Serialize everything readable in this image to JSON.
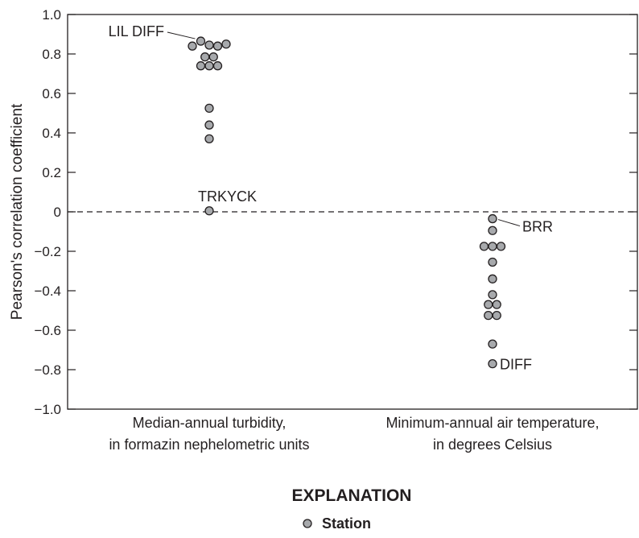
{
  "chart_data": {
    "type": "scatter",
    "ylabel": "Pearson's correlation coefficient",
    "ylim": [
      -1.0,
      1.0
    ],
    "yticks": [
      1.0,
      0.8,
      0.6,
      0.4,
      0.2,
      0,
      -0.2,
      -0.4,
      -0.6,
      -0.8,
      -1.0
    ],
    "ytick_labels": [
      "1.0",
      "0.8",
      "0.6",
      "0.4",
      "0.2",
      "0",
      "−0.2",
      "−0.4",
      "−0.6",
      "−0.8",
      "−1.0"
    ],
    "reference_line": 0,
    "categories": [
      {
        "line1": "Median-annual turbidity,",
        "line2": "in formazin nephelometric units"
      },
      {
        "line1": "Minimum-annual air temperature,",
        "line2": "in degrees Celsius"
      }
    ],
    "series": [
      {
        "category_index": 0,
        "points": [
          {
            "offset": -1,
            "y": 0.84
          },
          {
            "offset": -0.5,
            "y": 0.865,
            "label": "LIL DIFF"
          },
          {
            "offset": 0,
            "y": 0.845
          },
          {
            "offset": 0.5,
            "y": 0.84
          },
          {
            "offset": 1,
            "y": 0.85
          },
          {
            "offset": -0.25,
            "y": 0.785
          },
          {
            "offset": 0.25,
            "y": 0.785
          },
          {
            "offset": -0.5,
            "y": 0.74
          },
          {
            "offset": 0,
            "y": 0.74
          },
          {
            "offset": 0.5,
            "y": 0.74
          },
          {
            "offset": 0,
            "y": 0.525
          },
          {
            "offset": 0,
            "y": 0.44
          },
          {
            "offset": 0,
            "y": 0.37
          },
          {
            "offset": 0,
            "y": 0.005,
            "label": "TRKYCK"
          }
        ]
      },
      {
        "category_index": 1,
        "points": [
          {
            "offset": 0,
            "y": -0.035,
            "label": "BRR"
          },
          {
            "offset": 0,
            "y": -0.095
          },
          {
            "offset": -0.5,
            "y": -0.175
          },
          {
            "offset": 0,
            "y": -0.175
          },
          {
            "offset": 0.5,
            "y": -0.175
          },
          {
            "offset": 0,
            "y": -0.255
          },
          {
            "offset": 0,
            "y": -0.34
          },
          {
            "offset": 0,
            "y": -0.42
          },
          {
            "offset": -0.25,
            "y": -0.47
          },
          {
            "offset": 0.25,
            "y": -0.47
          },
          {
            "offset": -0.25,
            "y": -0.525
          },
          {
            "offset": 0.25,
            "y": -0.525
          },
          {
            "offset": 0,
            "y": -0.67
          },
          {
            "offset": 0,
            "y": -0.77,
            "label": "DIFF"
          }
        ]
      }
    ],
    "grid": false,
    "legend": {
      "title": "EXPLANATION",
      "items": [
        {
          "label": "Station",
          "marker": "circle"
        }
      ],
      "placement": "bottom-center"
    },
    "colors": {
      "marker_fill": "#a7a9ac",
      "marker_stroke": "#231f20",
      "axis": "#231f20"
    }
  }
}
